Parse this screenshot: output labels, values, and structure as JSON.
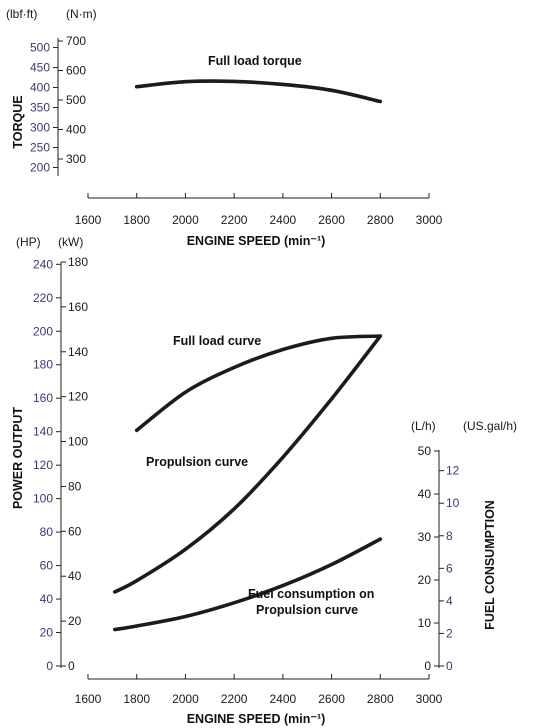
{
  "chart_data": [
    {
      "type": "line",
      "name_key": "torque_chart",
      "xlabel": "ENGINE SPEED (min⁻¹)",
      "ylabel": "TORQUE",
      "unit_left_outer": "(lbf·ft)",
      "unit_left_inner": "(N·m)",
      "x_ticks": [
        1600,
        1800,
        2000,
        2200,
        2400,
        2600,
        2800,
        3000
      ],
      "xlim": [
        1600,
        3000
      ],
      "y_left_outer_ticks": [
        200,
        250,
        300,
        350,
        400,
        450,
        500
      ],
      "y_left_inner_ticks": [
        300,
        400,
        500,
        600,
        700
      ],
      "ylim_nm": [
        200,
        750
      ],
      "series": [
        {
          "name": "Full load torque",
          "unit": "N·m",
          "x": [
            1800,
            2000,
            2200,
            2400,
            2600,
            2800
          ],
          "y": [
            545,
            562,
            563,
            553,
            533,
            495
          ]
        }
      ]
    },
    {
      "type": "line",
      "name_key": "power_chart",
      "xlabel": "ENGINE SPEED (min⁻¹)",
      "ylabel_left": "POWER OUTPUT",
      "ylabel_right": "FUEL CONSUMPTION",
      "unit_left_outer": "(HP)",
      "unit_left_inner": "(kW)",
      "unit_right_inner": "(L/h)",
      "unit_right_outer": "(US.gal/h)",
      "x_ticks": [
        1600,
        1800,
        2000,
        2200,
        2400,
        2600,
        2800,
        3000
      ],
      "xlim": [
        1600,
        3000
      ],
      "y_left_outer_ticks": [
        0,
        20,
        40,
        60,
        80,
        100,
        120,
        140,
        160,
        180,
        200,
        220,
        240
      ],
      "y_left_inner_ticks": [
        0,
        20,
        40,
        60,
        80,
        100,
        120,
        140,
        160,
        180
      ],
      "ylim_kw": [
        0,
        180
      ],
      "y_right_inner_ticks": [
        0,
        10,
        20,
        30,
        40,
        50
      ],
      "y_right_outer_ticks": [
        0,
        2,
        4,
        6,
        8,
        10,
        12
      ],
      "series": [
        {
          "name": "Full load curve",
          "unit": "kW",
          "x": [
            1800,
            2000,
            2200,
            2400,
            2600,
            2800
          ],
          "y": [
            105,
            122,
            133,
            141,
            146,
            147
          ]
        },
        {
          "name": "Propulsion curve",
          "unit": "kW",
          "x": [
            1710,
            1800,
            2000,
            2200,
            2400,
            2600,
            2800
          ],
          "y": [
            33,
            38,
            52,
            70,
            93,
            119,
            147
          ]
        },
        {
          "name": "Fuel consumption on Propulsion curve",
          "unit": "L/h",
          "x": [
            1710,
            1800,
            2000,
            2200,
            2400,
            2600,
            2800
          ],
          "y": [
            8.5,
            9.3,
            11.5,
            14.7,
            18.7,
            23.6,
            29.5
          ]
        }
      ],
      "annotations": {
        "propulsion_label": "Propulsion curve",
        "fuel_label_line1": "Fuel consumption on",
        "fuel_label_line2": "Propulsion curve"
      }
    }
  ],
  "colors": {
    "text": "#1a1a1a",
    "blue_ticks": "#3a3a7a",
    "curve": "#1c1c1c",
    "background": "#ffffff"
  }
}
